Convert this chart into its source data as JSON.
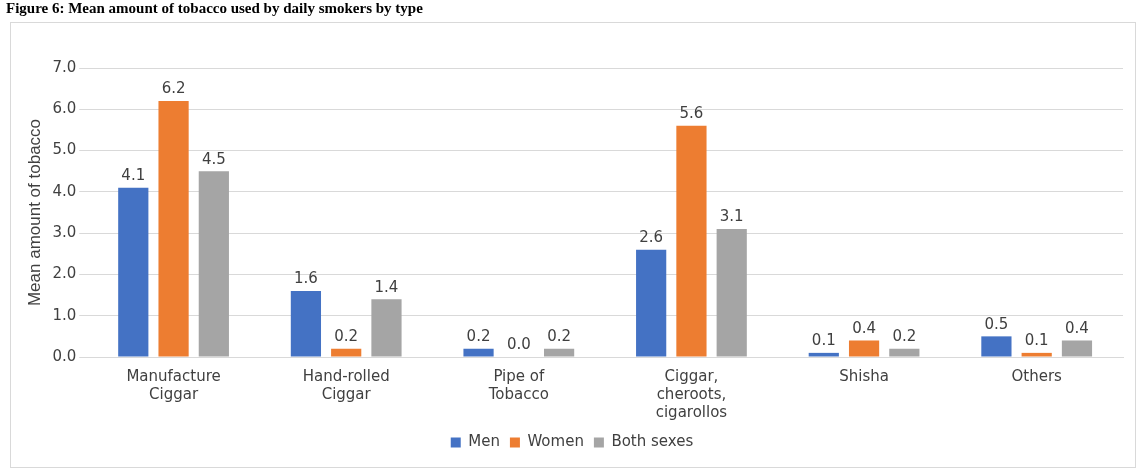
{
  "chart_data": {
    "type": "bar",
    "title": "Figure 6: Mean amount of tobacco used by daily smokers by type",
    "ylabel": "Mean amount of tobacco",
    "categories": [
      "Manufacture Ciggar",
      "Hand-rolled Ciggar",
      "Pipe of Tobacco",
      "Ciggar, cheroots, cigarollos",
      "Shisha",
      "Others"
    ],
    "series": [
      {
        "name": "Men",
        "color": "#4472c4",
        "values": [
          4.1,
          1.6,
          0.2,
          2.6,
          0.1,
          0.5
        ],
        "value_labels": [
          "4.1",
          "1.6",
          "0.2",
          "2.6",
          "0.1",
          "0.5"
        ]
      },
      {
        "name": "Women",
        "color": "#ed7d31",
        "values": [
          6.2,
          0.2,
          0.0,
          5.6,
          0.4,
          0.1
        ],
        "value_labels": [
          "6.2",
          "0.2",
          "0.0",
          "5.6",
          "0.4",
          "0.1"
        ]
      },
      {
        "name": "Both sexes",
        "color": "#a5a5a5",
        "values": [
          4.5,
          1.4,
          0.2,
          3.1,
          0.2,
          0.4
        ],
        "value_labels": [
          "4.5",
          "1.4",
          "0.2",
          "3.1",
          "0.2",
          "0.4"
        ]
      }
    ],
    "ylim": [
      0,
      7
    ],
    "yticks": [
      {
        "value": 0,
        "label": "0.0"
      },
      {
        "value": 1,
        "label": "1.0"
      },
      {
        "value": 2,
        "label": "2.0"
      },
      {
        "value": 3,
        "label": "3.0"
      },
      {
        "value": 4,
        "label": "4.0"
      },
      {
        "value": 5,
        "label": "5.0"
      },
      {
        "value": 6,
        "label": "6.0"
      },
      {
        "value": 7,
        "label": "7.0"
      }
    ],
    "grid": "y",
    "legend": "bottom"
  }
}
